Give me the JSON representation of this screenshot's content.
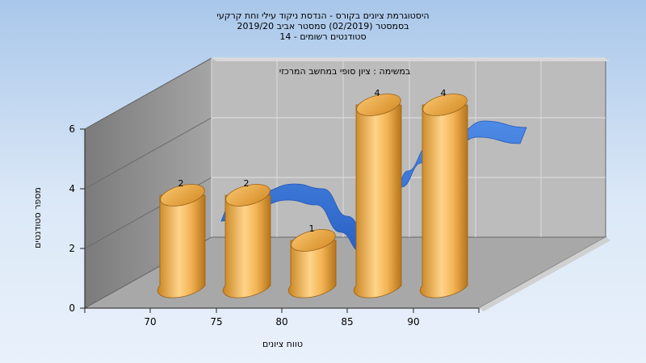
{
  "chart_data": {
    "type": "bar",
    "title_lines": [
      "היסטוגרמת ציונים בקורס - הנדסת ניקוד עילי וחת קרקעי",
      "בסמסטר (02/2019) סמסטר אביב 2019/20",
      "סטודנטים רשומים - 14"
    ],
    "subtitle": "במשימה : ציון סופי במחשב המרכזי",
    "xlabel": "טווח ציונים",
    "ylabel": "מספר סטודנטים",
    "x_ticks": [
      "70",
      "75",
      "80",
      "85",
      "90"
    ],
    "y_ticks": [
      0,
      2,
      4,
      6
    ],
    "ylim": [
      0,
      6
    ],
    "bars": [
      {
        "label": "70",
        "value": 2
      },
      {
        "label": "75",
        "value": 2
      },
      {
        "label": "80",
        "value": 1
      },
      {
        "label": "85",
        "value": 4
      },
      {
        "label": "90",
        "value": 4
      }
    ],
    "curve": "normal-distribution-ribbon",
    "grid": true,
    "colors": {
      "bar": "#e8a33c",
      "curve": "#2f6fd0",
      "back_wall": "#bdbdbd",
      "side_wall": "#8a8a8a",
      "floor": "#a9a9a9"
    }
  }
}
